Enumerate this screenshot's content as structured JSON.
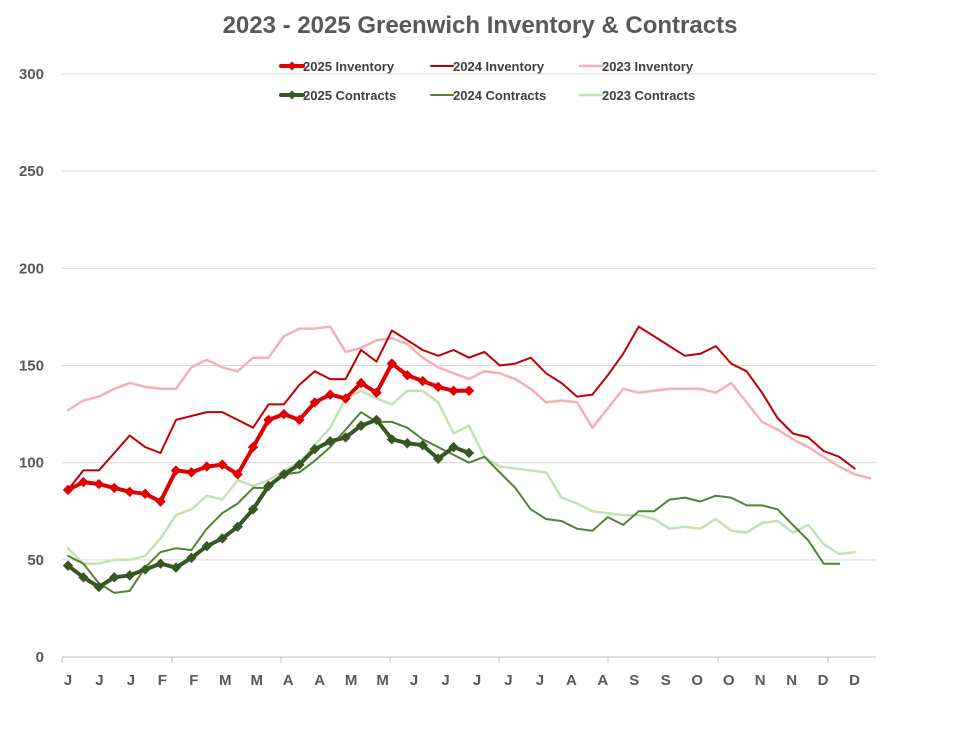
{
  "chart_data": {
    "type": "line",
    "title": "2023 - 2025 Greenwich Inventory & Contracts",
    "xlabel": "",
    "ylabel": "",
    "ylim": [
      0,
      300
    ],
    "y_ticks": [
      "0",
      "50",
      "100",
      "150",
      "200",
      "250",
      "300"
    ],
    "x_ticks": [
      "J",
      "J",
      "J",
      "F",
      "F",
      "M",
      "M",
      "A",
      "A",
      "M",
      "M",
      "J",
      "J",
      "J",
      "J",
      "J",
      "A",
      "A",
      "S",
      "S",
      "O",
      "O",
      "N",
      "N",
      "D",
      "D"
    ],
    "grid": true,
    "legend_position": "top",
    "colors": {
      "inv_2025": "#e00000",
      "inv_2024": "#c00000",
      "inv_2023": "#f4b0b8",
      "con_2025": "#375623",
      "con_2024": "#548235",
      "con_2023": "#c5e0b4"
    },
    "series": [
      {
        "name": "2025 Inventory",
        "color": "#e00000",
        "width": 4,
        "marker": "diamond",
        "values": [
          86,
          90,
          89,
          87,
          85,
          84,
          80,
          96,
          95,
          98,
          99,
          94,
          108,
          122,
          125,
          122,
          131,
          135,
          133,
          141,
          136,
          151,
          145,
          142,
          139,
          137,
          137
        ]
      },
      {
        "name": "2024 Inventory",
        "color": "#c00000",
        "width": 2,
        "marker": "none",
        "values": [
          86,
          96,
          96,
          105,
          114,
          108,
          105,
          122,
          124,
          126,
          126,
          122,
          118,
          130,
          130,
          140,
          147,
          143,
          143,
          158,
          152,
          168,
          163,
          158,
          155,
          158,
          154,
          157,
          150,
          151,
          154,
          146,
          141,
          134,
          135,
          145,
          156,
          170,
          165,
          160,
          155,
          156,
          160,
          151,
          147,
          136,
          123,
          115,
          113,
          106,
          103,
          97
        ]
      },
      {
        "name": "2023 Inventory",
        "color": "#f4b0b8",
        "width": 2.5,
        "marker": "none",
        "values": [
          127,
          132,
          134,
          138,
          141,
          139,
          138,
          138,
          149,
          153,
          149,
          147,
          154,
          154,
          165,
          169,
          169,
          170,
          157,
          159,
          163,
          164,
          161,
          154,
          149,
          146,
          143,
          147,
          146,
          143,
          138,
          131,
          132,
          131,
          118,
          128,
          138,
          136,
          137,
          138,
          138,
          138,
          136,
          141,
          131,
          121,
          117,
          112,
          108,
          103,
          98,
          94,
          92
        ]
      },
      {
        "name": "2025 Contracts",
        "color": "#375623",
        "width": 4,
        "marker": "diamond",
        "values": [
          47,
          41,
          36,
          41,
          42,
          45,
          48,
          46,
          51,
          57,
          61,
          67,
          76,
          88,
          94,
          99,
          107,
          111,
          113,
          119,
          122,
          112,
          110,
          109,
          102,
          108,
          105
        ]
      },
      {
        "name": "2024 Contracts",
        "color": "#548235",
        "width": 2,
        "marker": "none",
        "values": [
          52,
          48,
          38,
          33,
          34,
          46,
          54,
          56,
          55,
          66,
          74,
          79,
          87,
          87,
          94,
          95,
          101,
          108,
          117,
          126,
          121,
          121,
          118,
          112,
          108,
          104,
          100,
          103,
          95,
          87,
          76,
          71,
          70,
          66,
          65,
          72,
          68,
          75,
          75,
          81,
          82,
          80,
          83,
          82,
          78,
          78,
          76,
          68,
          60,
          48,
          48
        ]
      },
      {
        "name": "2023 Contracts",
        "color": "#c5e0b4",
        "width": 2.5,
        "marker": "none",
        "values": [
          56,
          48,
          48,
          50,
          50,
          52,
          61,
          73,
          76,
          83,
          81,
          91,
          88,
          91,
          96,
          100,
          109,
          118,
          133,
          137,
          133,
          130,
          137,
          137,
          131,
          115,
          119,
          103,
          98,
          97,
          96,
          95,
          82,
          79,
          75,
          74,
          73,
          73,
          71,
          66,
          67,
          66,
          71,
          65,
          64,
          69,
          70,
          64,
          68,
          58,
          53,
          54
        ]
      }
    ]
  }
}
